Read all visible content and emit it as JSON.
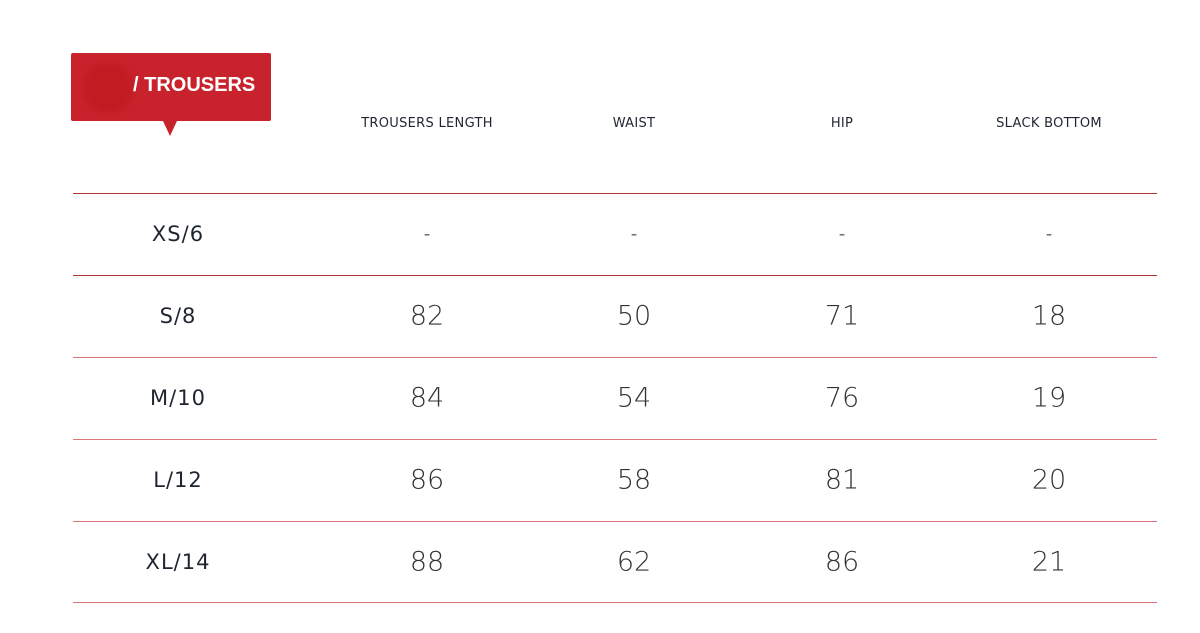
{
  "category": "/ TROUSERS",
  "columns": [
    "TROUSERS LENGTH",
    "WAIST",
    "HIP",
    "SLACK BOTTOM"
  ],
  "rows": [
    {
      "size": "XS/6",
      "values": [
        "-",
        "-",
        "-",
        "-"
      ]
    },
    {
      "size": "S/8",
      "values": [
        "82",
        "50",
        "71",
        "18"
      ]
    },
    {
      "size": "M/10",
      "values": [
        "84",
        "54",
        "76",
        "19"
      ]
    },
    {
      "size": "L/12",
      "values": [
        "86",
        "58",
        "81",
        "20"
      ]
    },
    {
      "size": "XL/14",
      "values": [
        "88",
        "62",
        "86",
        "21"
      ]
    }
  ],
  "colors": {
    "accent": "#c8232c",
    "line_dark": "#b4343a",
    "line_light": "#d9777b"
  }
}
